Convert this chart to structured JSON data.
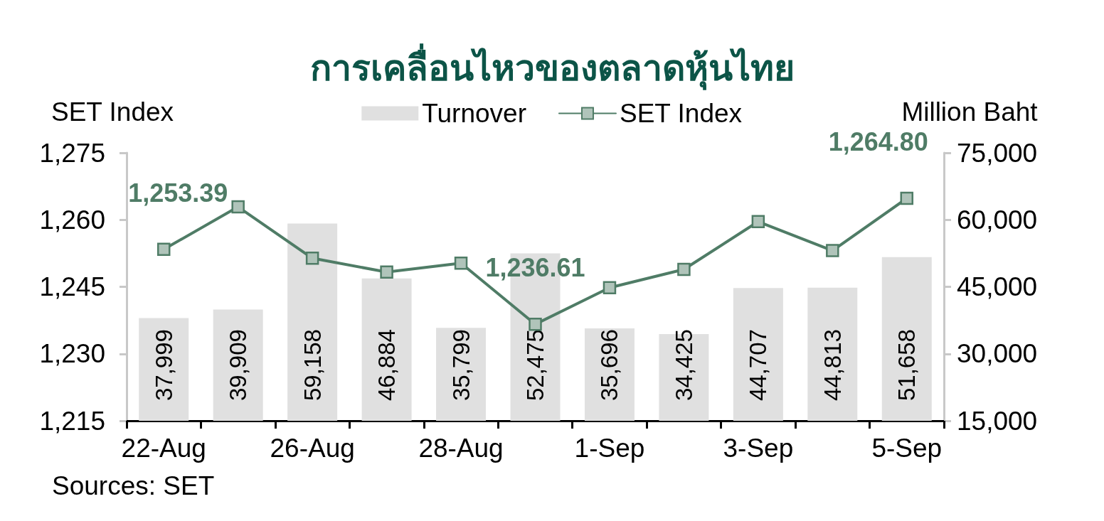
{
  "chart_data": {
    "type": "bar",
    "title": "การเคลื่อนไหวของตลาดหุ้นไทย",
    "ylabel": "SET Index",
    "y2label": "Million Baht",
    "annotations": [
      "Sources: SET"
    ],
    "categories": [
      "22-Aug",
      null,
      "26-Aug",
      null,
      "28-Aug",
      null,
      "1-Sep",
      null,
      "3-Sep",
      null,
      "5-Sep"
    ],
    "series": [
      {
        "name": "Turnover",
        "axis": "y2",
        "color": "#e0e0e0",
        "values": [
          37999,
          39909,
          59158,
          46884,
          35799,
          52475,
          35696,
          34425,
          44707,
          44813,
          51658
        ],
        "value_labels": [
          "37,999",
          "39,909",
          "59,158",
          "46,884",
          "35,799",
          "52,475",
          "35,696",
          "34,425",
          "44,707",
          "44,813",
          "51,658"
        ]
      },
      {
        "name": "SET Index",
        "type": "line",
        "axis": "y",
        "color": "#4f7c66",
        "values": [
          1253.39,
          1262.9,
          1251.4,
          1248.3,
          1250.3,
          1236.61,
          1244.8,
          1248.9,
          1259.6,
          1253.1,
          1264.8
        ],
        "value_labels": [
          "1,253.39",
          null,
          null,
          null,
          null,
          "1,236.61",
          null,
          null,
          null,
          null,
          "1,264.80"
        ]
      }
    ],
    "ylim": [
      1215,
      1275
    ],
    "yticks": [
      {
        "value": 1215,
        "label": "1,215"
      },
      {
        "value": 1230,
        "label": "1,230"
      },
      {
        "value": 1245,
        "label": "1,245"
      },
      {
        "value": 1260,
        "label": "1,260"
      },
      {
        "value": 1275,
        "label": "1,275"
      }
    ],
    "y2lim": [
      15000,
      75000
    ],
    "y2ticks": [
      {
        "value": 15000,
        "label": "15,000"
      },
      {
        "value": 30000,
        "label": "30,000"
      },
      {
        "value": 45000,
        "label": "45,000"
      },
      {
        "value": 60000,
        "label": "60,000"
      },
      {
        "value": 75000,
        "label": "75,000"
      }
    ],
    "marker": "square",
    "line_style": "solid",
    "legend": "top"
  }
}
